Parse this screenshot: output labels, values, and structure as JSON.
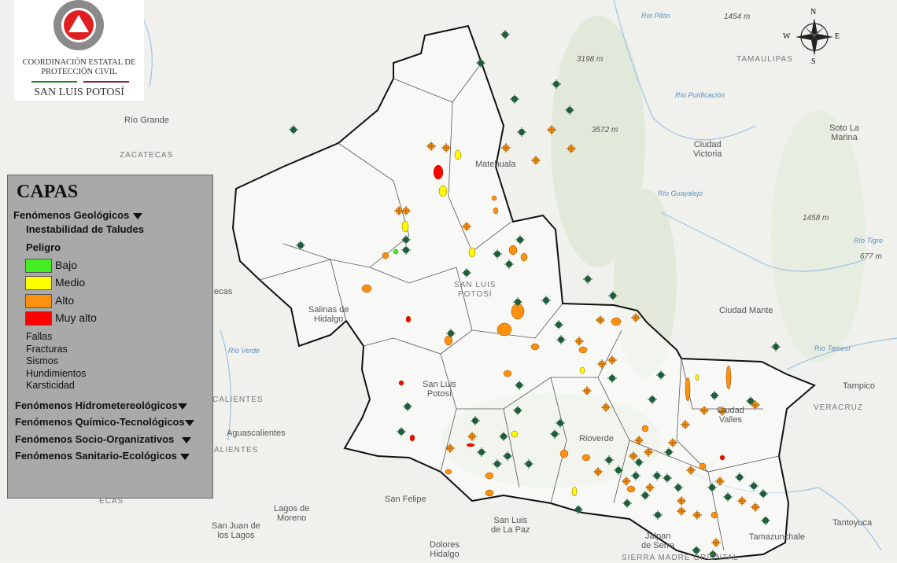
{
  "logo": {
    "org_line1": "COORDINACIÓN ESTATAL DE",
    "org_line2": "PROTECCIÓN CIVIL",
    "state": "SAN LUIS POTOSÍ",
    "colors": {
      "red": "#e02020",
      "gray": "#8a8a8a",
      "green": "#2e7d32",
      "maroon": "#8b1c3a"
    }
  },
  "compass": {
    "n": "N",
    "s": "S",
    "e": "E",
    "w": "W"
  },
  "legend": {
    "title": "CAPAS",
    "group_geologicos": "Fenómenos Geológicos",
    "subgroup": "Inestabilidad de Taludes",
    "peligro_label": "Peligro",
    "levels": [
      {
        "label": "Bajo",
        "color": "#44ee22"
      },
      {
        "label": "Medio",
        "color": "#ffff00"
      },
      {
        "label": "Alto",
        "color": "#ff9010"
      },
      {
        "label": "Muy alto",
        "color": "#ff0000"
      }
    ],
    "other_layers": [
      "Fallas",
      "Fracturas",
      "Sismos",
      "Hundimientos",
      "Karsticidad"
    ],
    "groups": [
      "Fenómenos Hidrometereológicos",
      "Fenómenos Químico-Tecnológicos",
      "Fenómenos Socio-Organizativos",
      "Fenómenos Sanitario-Ecológicos"
    ]
  },
  "places": {
    "rio_grande": "Río Grande",
    "zacatecas": "ZACATECAS",
    "matehuala": "Matehuala",
    "san_luis_potosi_top": "SAN LUIS\nPOTOSÍ",
    "salinas": "Salinas de\nHidalgo",
    "slp_city": "San Luis\nPotosí",
    "aguascalientes": "Aguascalientes",
    "san_felipe": "San Felipe",
    "lagos": "Lagos de\nMoreno",
    "san_juan": "San Juan de\nlos Lagos",
    "slp_paz": "San Luis\nde La Paz",
    "dolores": "Dolores\nHidalgo",
    "jalpan": "Jalpan\nde Serra",
    "ciudad_victoria": "Ciudad\nVictoria",
    "tamaulipas": "TAMAULIPAS",
    "soto_la_marina": "Soto La\nMarina",
    "ciudad_mante": "Ciudad Mante",
    "ciudad_valles": "Ciudad\nValles",
    "veracruz": "VERACRUZ",
    "tampico": "Tampico",
    "tantoyuca": "Tantoyuca",
    "tamazunchale": "Tamazunchale",
    "rioverde": "Rioverde",
    "ecas": "ecas",
    "sierra": "SIERRA MADRE ORIENTAL",
    "rio_pilon": "Río Pilón",
    "rio_purificacion": "Río Purificación",
    "rio_guayalejo": "Río Guayalejo",
    "rio_tigre": "Río Tigre",
    "rio_tamesi": "Río Tamesí",
    "elev_1454": "1454 m",
    "elev_3198": "3198 m",
    "elev_3572": "3572 m",
    "elev_1458": "1458 m",
    "elev_677": "677 m",
    "calientes": "CALIENTES",
    "alientes": "ALIENTES",
    "ecas2": "ECAS",
    "rio_verde": "Río Verde"
  },
  "markers": {
    "point_color": "#1e5e3a",
    "cross_color": "#ff9a1a",
    "outline_color": "#111111",
    "municipio_color": "#555555"
  }
}
